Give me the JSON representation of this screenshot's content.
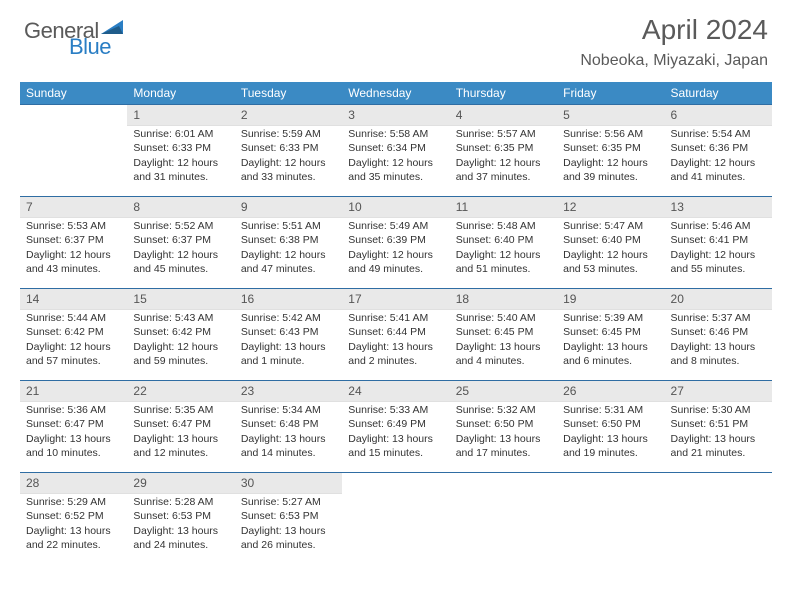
{
  "logo": {
    "general": "General",
    "blue": "Blue"
  },
  "title": "April 2024",
  "location": "Nobeoka, Miyazaki, Japan",
  "colors": {
    "header_bg": "#3b8ac4",
    "header_text": "#ffffff",
    "daynum_bg": "#e9e9e9",
    "border_top": "#2f6da3",
    "text": "#333333",
    "title_text": "#5a5a5a",
    "logo_gray": "#5a5a5a",
    "logo_blue": "#2a7ec4",
    "background": "#ffffff"
  },
  "typography": {
    "title_fontsize": 28,
    "location_fontsize": 16,
    "dayheader_fontsize": 12,
    "cell_fontsize": 10.5,
    "font_family": "Arial"
  },
  "days_of_week": [
    "Sunday",
    "Monday",
    "Tuesday",
    "Wednesday",
    "Thursday",
    "Friday",
    "Saturday"
  ],
  "weeks": [
    [
      {
        "num": "",
        "lines": []
      },
      {
        "num": "1",
        "lines": [
          "Sunrise: 6:01 AM",
          "Sunset: 6:33 PM",
          "Daylight: 12 hours",
          "and 31 minutes."
        ]
      },
      {
        "num": "2",
        "lines": [
          "Sunrise: 5:59 AM",
          "Sunset: 6:33 PM",
          "Daylight: 12 hours",
          "and 33 minutes."
        ]
      },
      {
        "num": "3",
        "lines": [
          "Sunrise: 5:58 AM",
          "Sunset: 6:34 PM",
          "Daylight: 12 hours",
          "and 35 minutes."
        ]
      },
      {
        "num": "4",
        "lines": [
          "Sunrise: 5:57 AM",
          "Sunset: 6:35 PM",
          "Daylight: 12 hours",
          "and 37 minutes."
        ]
      },
      {
        "num": "5",
        "lines": [
          "Sunrise: 5:56 AM",
          "Sunset: 6:35 PM",
          "Daylight: 12 hours",
          "and 39 minutes."
        ]
      },
      {
        "num": "6",
        "lines": [
          "Sunrise: 5:54 AM",
          "Sunset: 6:36 PM",
          "Daylight: 12 hours",
          "and 41 minutes."
        ]
      }
    ],
    [
      {
        "num": "7",
        "lines": [
          "Sunrise: 5:53 AM",
          "Sunset: 6:37 PM",
          "Daylight: 12 hours",
          "and 43 minutes."
        ]
      },
      {
        "num": "8",
        "lines": [
          "Sunrise: 5:52 AM",
          "Sunset: 6:37 PM",
          "Daylight: 12 hours",
          "and 45 minutes."
        ]
      },
      {
        "num": "9",
        "lines": [
          "Sunrise: 5:51 AM",
          "Sunset: 6:38 PM",
          "Daylight: 12 hours",
          "and 47 minutes."
        ]
      },
      {
        "num": "10",
        "lines": [
          "Sunrise: 5:49 AM",
          "Sunset: 6:39 PM",
          "Daylight: 12 hours",
          "and 49 minutes."
        ]
      },
      {
        "num": "11",
        "lines": [
          "Sunrise: 5:48 AM",
          "Sunset: 6:40 PM",
          "Daylight: 12 hours",
          "and 51 minutes."
        ]
      },
      {
        "num": "12",
        "lines": [
          "Sunrise: 5:47 AM",
          "Sunset: 6:40 PM",
          "Daylight: 12 hours",
          "and 53 minutes."
        ]
      },
      {
        "num": "13",
        "lines": [
          "Sunrise: 5:46 AM",
          "Sunset: 6:41 PM",
          "Daylight: 12 hours",
          "and 55 minutes."
        ]
      }
    ],
    [
      {
        "num": "14",
        "lines": [
          "Sunrise: 5:44 AM",
          "Sunset: 6:42 PM",
          "Daylight: 12 hours",
          "and 57 minutes."
        ]
      },
      {
        "num": "15",
        "lines": [
          "Sunrise: 5:43 AM",
          "Sunset: 6:42 PM",
          "Daylight: 12 hours",
          "and 59 minutes."
        ]
      },
      {
        "num": "16",
        "lines": [
          "Sunrise: 5:42 AM",
          "Sunset: 6:43 PM",
          "Daylight: 13 hours",
          "and 1 minute."
        ]
      },
      {
        "num": "17",
        "lines": [
          "Sunrise: 5:41 AM",
          "Sunset: 6:44 PM",
          "Daylight: 13 hours",
          "and 2 minutes."
        ]
      },
      {
        "num": "18",
        "lines": [
          "Sunrise: 5:40 AM",
          "Sunset: 6:45 PM",
          "Daylight: 13 hours",
          "and 4 minutes."
        ]
      },
      {
        "num": "19",
        "lines": [
          "Sunrise: 5:39 AM",
          "Sunset: 6:45 PM",
          "Daylight: 13 hours",
          "and 6 minutes."
        ]
      },
      {
        "num": "20",
        "lines": [
          "Sunrise: 5:37 AM",
          "Sunset: 6:46 PM",
          "Daylight: 13 hours",
          "and 8 minutes."
        ]
      }
    ],
    [
      {
        "num": "21",
        "lines": [
          "Sunrise: 5:36 AM",
          "Sunset: 6:47 PM",
          "Daylight: 13 hours",
          "and 10 minutes."
        ]
      },
      {
        "num": "22",
        "lines": [
          "Sunrise: 5:35 AM",
          "Sunset: 6:47 PM",
          "Daylight: 13 hours",
          "and 12 minutes."
        ]
      },
      {
        "num": "23",
        "lines": [
          "Sunrise: 5:34 AM",
          "Sunset: 6:48 PM",
          "Daylight: 13 hours",
          "and 14 minutes."
        ]
      },
      {
        "num": "24",
        "lines": [
          "Sunrise: 5:33 AM",
          "Sunset: 6:49 PM",
          "Daylight: 13 hours",
          "and 15 minutes."
        ]
      },
      {
        "num": "25",
        "lines": [
          "Sunrise: 5:32 AM",
          "Sunset: 6:50 PM",
          "Daylight: 13 hours",
          "and 17 minutes."
        ]
      },
      {
        "num": "26",
        "lines": [
          "Sunrise: 5:31 AM",
          "Sunset: 6:50 PM",
          "Daylight: 13 hours",
          "and 19 minutes."
        ]
      },
      {
        "num": "27",
        "lines": [
          "Sunrise: 5:30 AM",
          "Sunset: 6:51 PM",
          "Daylight: 13 hours",
          "and 21 minutes."
        ]
      }
    ],
    [
      {
        "num": "28",
        "lines": [
          "Sunrise: 5:29 AM",
          "Sunset: 6:52 PM",
          "Daylight: 13 hours",
          "and 22 minutes."
        ]
      },
      {
        "num": "29",
        "lines": [
          "Sunrise: 5:28 AM",
          "Sunset: 6:53 PM",
          "Daylight: 13 hours",
          "and 24 minutes."
        ]
      },
      {
        "num": "30",
        "lines": [
          "Sunrise: 5:27 AM",
          "Sunset: 6:53 PM",
          "Daylight: 13 hours",
          "and 26 minutes."
        ]
      },
      {
        "num": "",
        "lines": []
      },
      {
        "num": "",
        "lines": []
      },
      {
        "num": "",
        "lines": []
      },
      {
        "num": "",
        "lines": []
      }
    ]
  ]
}
